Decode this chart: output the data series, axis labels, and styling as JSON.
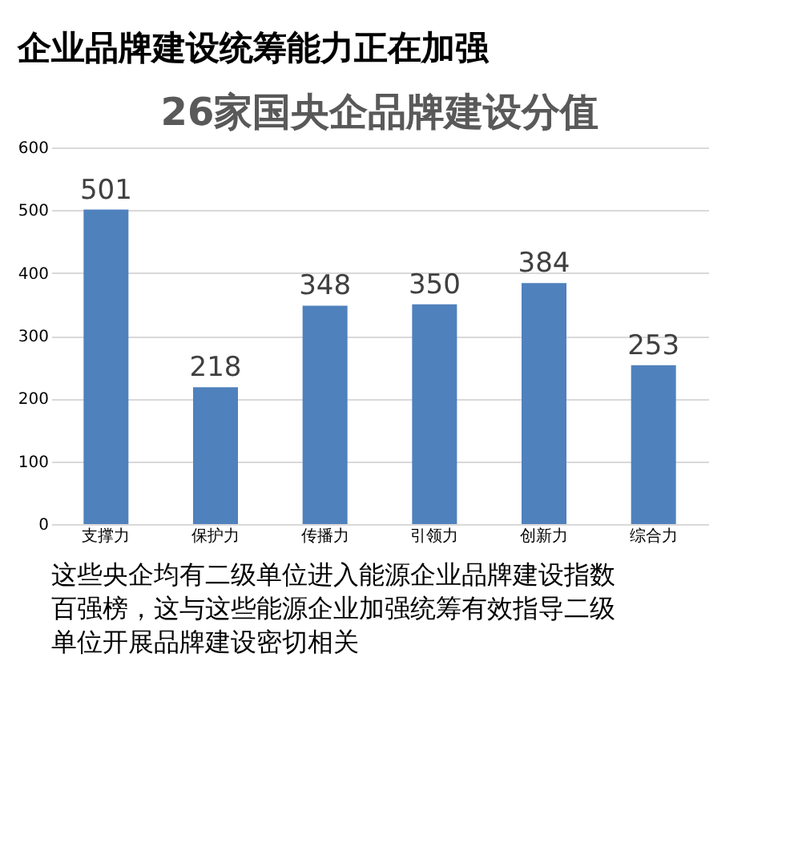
{
  "chart_data": {
    "type": "bar",
    "title": "企业品牌建设统筹能力正在加强",
    "subtitle": "26家国央企品牌建设分值",
    "categories": [
      "支撑力",
      "保护力",
      "传播力",
      "引领力",
      "创新力",
      "综合力"
    ],
    "values": [
      501,
      218,
      348,
      350,
      384,
      253
    ],
    "color": "#4f81bd",
    "ylim": [
      0,
      600
    ],
    "yticks": [
      0,
      100,
      200,
      300,
      400,
      500,
      600
    ],
    "grid": "y",
    "data_labels": true,
    "annotations": [
      "这些央企均有二级单位进入能源企业品牌建设指数百强榜，这与这些能源企业加强统筹有效指导二级单位开展品牌建设密切相关"
    ]
  }
}
